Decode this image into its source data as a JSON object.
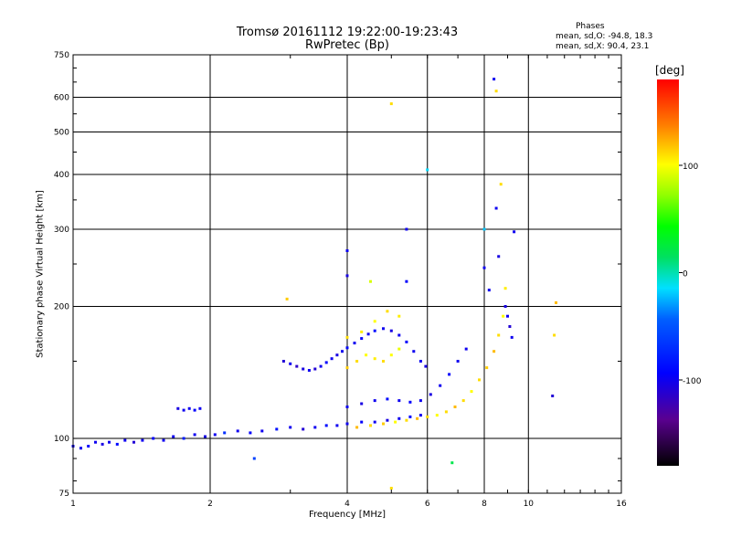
{
  "chart_data": {
    "type": "scatter",
    "title": "Tromsø 20161112 19:22:00-19:23:43",
    "subtitle": "RwPretec (Bp)",
    "xlabel": "Frequency [MHz]",
    "ylabel": "Stationary phase Virtual Height [km]",
    "x_scale": "log",
    "y_scale": "log",
    "xlim": [
      1,
      16
    ],
    "ylim": [
      75,
      750
    ],
    "x_ticks": [
      1,
      2,
      4,
      6,
      8,
      10,
      16
    ],
    "y_ticks": [
      75,
      100,
      200,
      300,
      400,
      500,
      600,
      750
    ],
    "grid": true,
    "phases": {
      "title": "Phases",
      "o_line": "mean, sd,O: -94.8, 18.3",
      "x_line": "mean, sd,X:  90.4, 23.1"
    },
    "colorbar": {
      "label": "[deg]",
      "ticks": [
        100,
        0,
        -100
      ],
      "range": [
        -180,
        180
      ]
    },
    "series": [
      {
        "points": [
          [
            1.0,
            96,
            -100
          ],
          [
            1.04,
            95,
            -100
          ],
          [
            1.08,
            96,
            -95
          ],
          [
            1.12,
            98,
            -100
          ],
          [
            1.16,
            97,
            -105
          ],
          [
            1.2,
            98,
            -100
          ],
          [
            1.25,
            97,
            -90
          ],
          [
            1.3,
            99,
            -100
          ],
          [
            1.36,
            98,
            -110
          ],
          [
            1.42,
            99,
            -100
          ],
          [
            1.5,
            100,
            -95
          ],
          [
            1.58,
            99,
            -100
          ],
          [
            1.66,
            101,
            -100
          ],
          [
            1.75,
            100,
            -80
          ],
          [
            1.85,
            102,
            -100
          ],
          [
            1.95,
            101,
            -105
          ],
          [
            2.05,
            102,
            -100
          ],
          [
            2.15,
            103,
            -70
          ],
          [
            2.3,
            104,
            -100
          ],
          [
            2.45,
            103,
            -95
          ],
          [
            2.6,
            104,
            -100
          ],
          [
            2.8,
            105,
            -85
          ],
          [
            3.0,
            106,
            -100
          ],
          [
            3.2,
            105,
            -110
          ],
          [
            3.4,
            106,
            -100
          ],
          [
            3.6,
            107,
            -90
          ],
          [
            3.8,
            107,
            -100
          ],
          [
            4.0,
            108,
            -100
          ],
          [
            4.3,
            109,
            -95
          ],
          [
            4.6,
            109,
            -100
          ],
          [
            4.9,
            110,
            -105
          ],
          [
            5.2,
            111,
            -100
          ],
          [
            5.5,
            112,
            -90
          ],
          [
            5.8,
            113,
            -100
          ]
        ]
      },
      {
        "points": [
          [
            1.7,
            117,
            -105
          ],
          [
            1.75,
            116,
            -100
          ],
          [
            1.8,
            117,
            -100
          ],
          [
            1.85,
            116,
            -95
          ],
          [
            1.9,
            117,
            -100
          ]
        ]
      },
      {
        "points": [
          [
            2.9,
            150,
            -110
          ],
          [
            3.0,
            148,
            -100
          ],
          [
            3.1,
            146,
            -115
          ],
          [
            3.2,
            144,
            -105
          ],
          [
            3.3,
            143,
            -100
          ],
          [
            3.4,
            144,
            -110
          ],
          [
            3.5,
            146,
            -100
          ],
          [
            3.6,
            149,
            -95
          ],
          [
            3.7,
            152,
            -100
          ],
          [
            3.8,
            155,
            -105
          ],
          [
            3.9,
            158,
            -100
          ],
          [
            4.0,
            161,
            -90
          ],
          [
            4.15,
            165,
            -100
          ],
          [
            4.3,
            169,
            -95
          ],
          [
            4.45,
            173,
            -100
          ],
          [
            4.6,
            176,
            -90
          ],
          [
            4.8,
            178,
            -100
          ],
          [
            5.0,
            176,
            -105
          ],
          [
            5.2,
            172,
            -100
          ],
          [
            5.4,
            166,
            -95
          ],
          [
            5.6,
            158,
            -100
          ],
          [
            5.8,
            150,
            -100
          ],
          [
            5.95,
            146,
            -105
          ]
        ]
      },
      {
        "points": [
          [
            4.0,
            145,
            115
          ],
          [
            4.2,
            150,
            110
          ],
          [
            4.4,
            155,
            100
          ],
          [
            4.6,
            152,
            105
          ],
          [
            4.8,
            150,
            110
          ],
          [
            5.0,
            155,
            100
          ],
          [
            5.2,
            160,
            95
          ],
          [
            4.0,
            170,
            110
          ],
          [
            4.3,
            175,
            105
          ],
          [
            4.6,
            185,
            100
          ],
          [
            4.9,
            195,
            110
          ],
          [
            5.2,
            190,
            105
          ]
        ]
      },
      {
        "points": [
          [
            4.0,
            118,
            -100
          ],
          [
            4.3,
            120,
            -105
          ],
          [
            4.6,
            122,
            -100
          ],
          [
            4.9,
            123,
            -90
          ],
          [
            5.2,
            122,
            -100
          ],
          [
            5.5,
            121,
            -95
          ],
          [
            5.8,
            122,
            -100
          ],
          [
            6.1,
            126,
            -105
          ],
          [
            6.4,
            132,
            -100
          ],
          [
            6.7,
            140,
            -95
          ],
          [
            7.0,
            150,
            -100
          ],
          [
            7.3,
            160,
            -100
          ]
        ]
      },
      {
        "points": [
          [
            4.2,
            106,
            120
          ],
          [
            4.5,
            107,
            110
          ],
          [
            4.8,
            108,
            115
          ],
          [
            5.1,
            109,
            100
          ],
          [
            5.4,
            110,
            110
          ],
          [
            5.7,
            111,
            120
          ],
          [
            6.0,
            112,
            110
          ],
          [
            6.3,
            113,
            100
          ],
          [
            6.6,
            115,
            110
          ],
          [
            6.9,
            118,
            120
          ],
          [
            7.2,
            122,
            110
          ],
          [
            7.5,
            128,
            100
          ],
          [
            7.8,
            136,
            110
          ],
          [
            8.1,
            145,
            115
          ],
          [
            8.4,
            158,
            120
          ],
          [
            8.6,
            172,
            110
          ],
          [
            8.8,
            190,
            100
          ]
        ]
      },
      {
        "points": [
          [
            8.9,
            200,
            -105
          ],
          [
            9.0,
            190,
            -100
          ],
          [
            9.1,
            180,
            -110
          ],
          [
            9.2,
            170,
            -100
          ]
        ]
      },
      {
        "points": [
          [
            2.95,
            208,
            115
          ],
          [
            4.0,
            268,
            -100
          ],
          [
            4.0,
            235,
            -105
          ],
          [
            4.5,
            228,
            90
          ],
          [
            5.0,
            580,
            110
          ],
          [
            5.4,
            300,
            -100
          ],
          [
            5.4,
            228,
            -95
          ],
          [
            6.0,
            410,
            -15
          ],
          [
            8.0,
            300,
            -20
          ],
          [
            8.0,
            245,
            -100
          ],
          [
            8.4,
            660,
            -100
          ],
          [
            8.5,
            620,
            110
          ],
          [
            8.5,
            335,
            -100
          ],
          [
            8.7,
            380,
            110
          ],
          [
            9.3,
            296,
            -100
          ],
          [
            8.6,
            260,
            -105
          ],
          [
            8.2,
            218,
            -100
          ],
          [
            8.9,
            220,
            105
          ],
          [
            11.5,
            204,
            120
          ],
          [
            11.4,
            172,
            110
          ],
          [
            11.3,
            125,
            -110
          ],
          [
            5.0,
            77,
            110
          ],
          [
            6.8,
            88,
            20
          ],
          [
            2.5,
            90,
            -60
          ]
        ]
      }
    ]
  }
}
